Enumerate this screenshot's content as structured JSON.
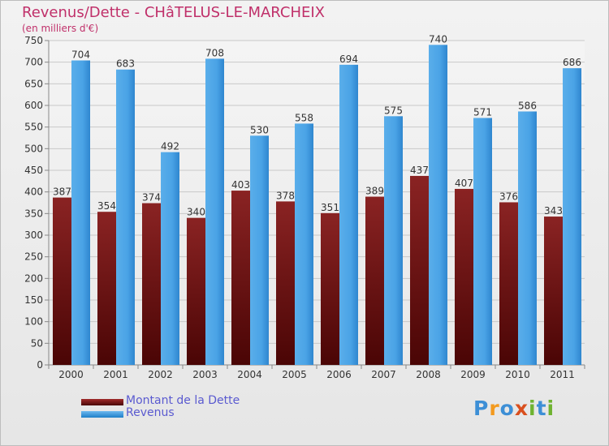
{
  "chart_data": {
    "type": "bar",
    "title": "Revenus/Dette - CHâTELUS-LE-MARCHEIX",
    "subtitle": "(en milliers d'€)",
    "categories": [
      "2000",
      "2001",
      "2002",
      "2003",
      "2004",
      "2005",
      "2006",
      "2007",
      "2008",
      "2009",
      "2010",
      "2011"
    ],
    "series": [
      {
        "name": "Montant de la Dette",
        "color": "#7a1a1a",
        "values": [
          387,
          354,
          374,
          340,
          403,
          378,
          351,
          389,
          437,
          407,
          376,
          343
        ]
      },
      {
        "name": "Revenus",
        "color": "#3d9be0",
        "values": [
          704,
          683,
          492,
          708,
          530,
          558,
          694,
          575,
          740,
          571,
          586,
          686
        ]
      }
    ],
    "yticks": [
      0,
      50,
      100,
      150,
      200,
      250,
      300,
      350,
      400,
      450,
      500,
      550,
      600,
      650,
      700,
      750
    ],
    "ylim": [
      0,
      750
    ],
    "grid": true,
    "legend_position": "bottom-left"
  },
  "logo": {
    "letters": [
      "P",
      "r",
      "o",
      "x",
      "i",
      "t",
      "i"
    ],
    "colors": [
      "#3d8fd6",
      "#f39a1e",
      "#3d8fd6",
      "#d94f1e",
      "#6fb331",
      "#3d8fd6",
      "#6fb331"
    ]
  }
}
